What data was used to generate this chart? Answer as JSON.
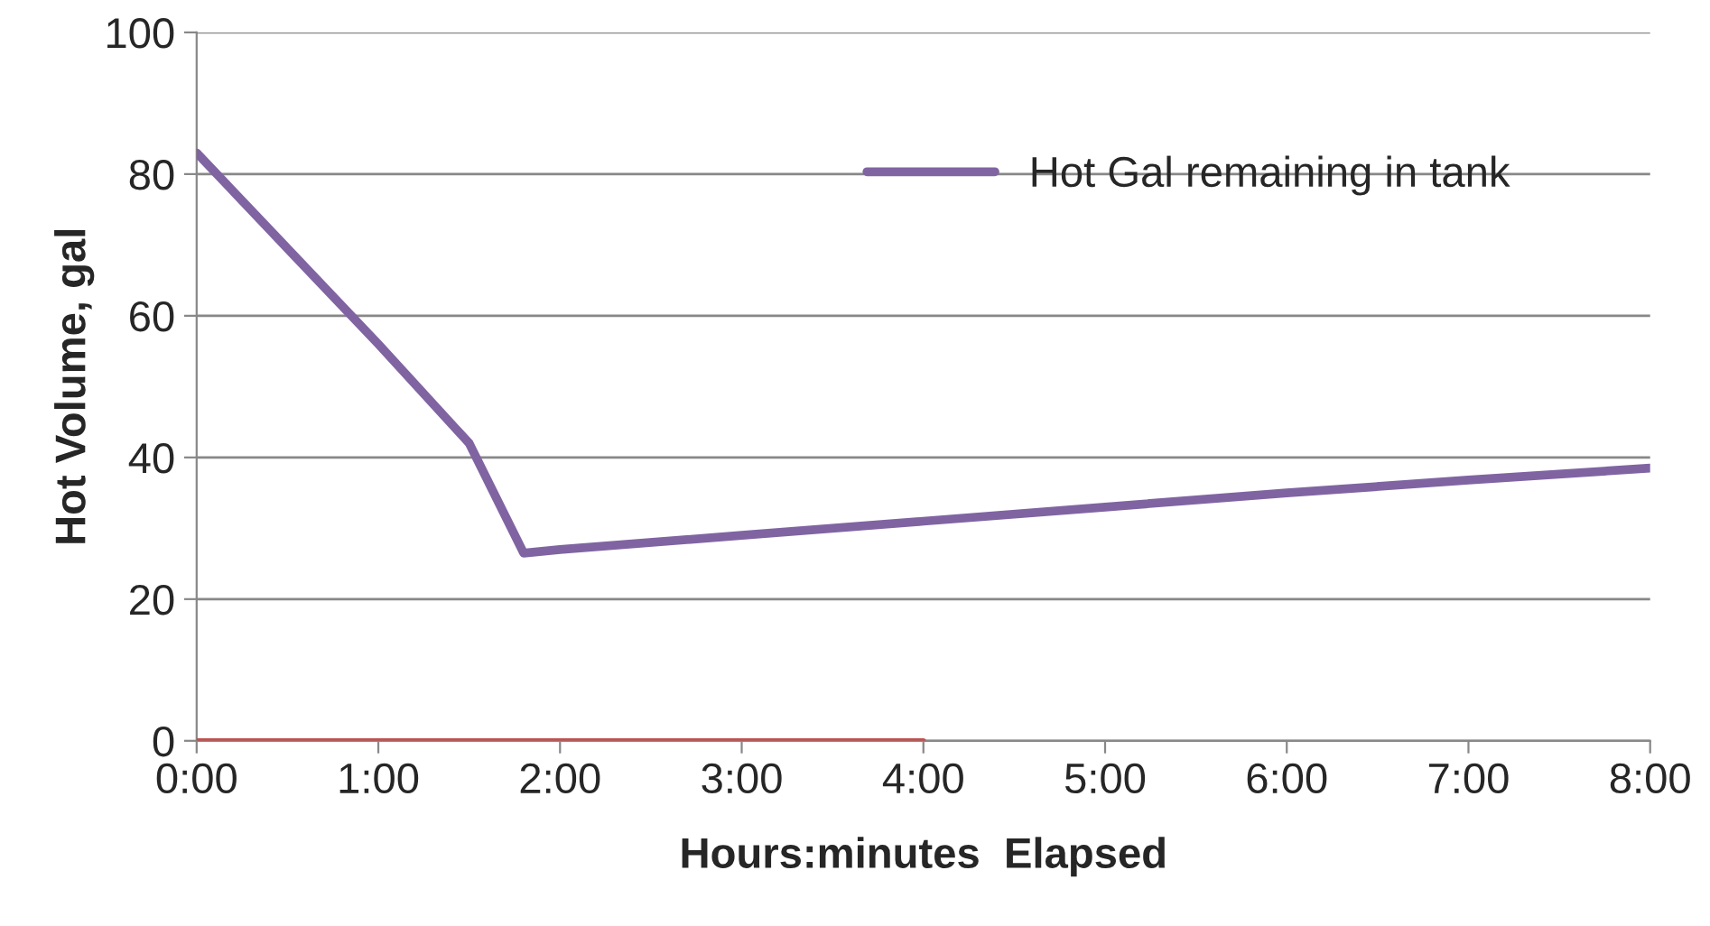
{
  "chart_data": {
    "type": "line",
    "xlabel": "Hours:minutes  Elapsed",
    "ylabel": "Hot Volume, gal",
    "xlim": [
      0,
      8
    ],
    "xticks": [
      {
        "value": 0,
        "label": "0:00"
      },
      {
        "value": 1,
        "label": "1:00"
      },
      {
        "value": 2,
        "label": "2:00"
      },
      {
        "value": 3,
        "label": "3:00"
      },
      {
        "value": 4,
        "label": "4:00"
      },
      {
        "value": 5,
        "label": "5:00"
      },
      {
        "value": 6,
        "label": "6:00"
      },
      {
        "value": 7,
        "label": "7:00"
      },
      {
        "value": 8,
        "label": "8:00"
      }
    ],
    "ylim": [
      0,
      100
    ],
    "yticks": [
      0,
      20,
      40,
      60,
      80,
      100
    ],
    "grid": "y",
    "legend": "top right",
    "marker": "none",
    "line_style": "solid",
    "series": [
      {
        "name": "Hot Gal remaining in tank",
        "color": "#8064a2",
        "x": [
          0,
          0.5,
          1,
          1.5,
          1.8,
          2,
          3,
          4,
          5,
          6,
          7,
          8
        ],
        "values": [
          83,
          69.5,
          56,
          42,
          26.5,
          27,
          29,
          31,
          33,
          35,
          36.8,
          38.5
        ]
      },
      {
        "color": "#c0504d",
        "x": [
          0,
          4
        ],
        "values": [
          0,
          0
        ]
      }
    ]
  }
}
